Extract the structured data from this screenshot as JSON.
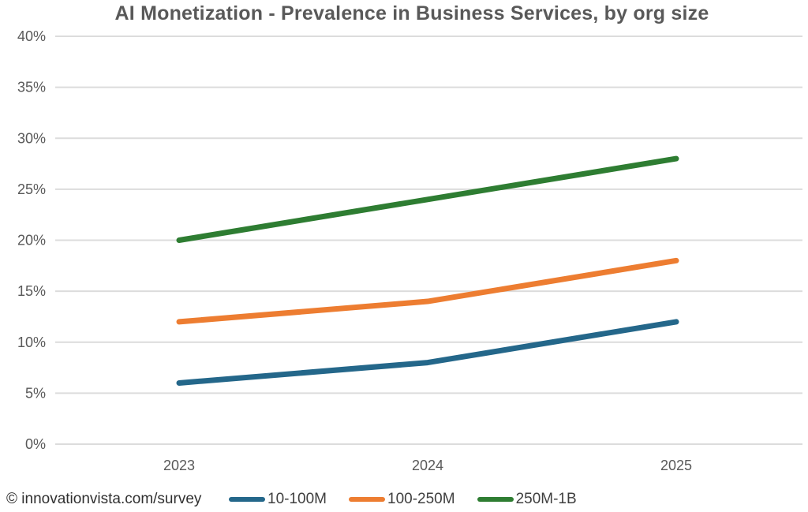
{
  "title": "AI Monetization - Prevalence in Business Services, by org size",
  "footer": {
    "source": "© innovationvista.com/survey"
  },
  "colors": {
    "background": "#ffffff",
    "title_text": "#595959",
    "axis_text": "#595959",
    "gridline": "#dcdcdc",
    "legend_text": "#3f3f3f",
    "footer_text": "#303030"
  },
  "chart_data": {
    "type": "line",
    "title": "AI Monetization - Prevalence in Business Services, by org size",
    "categories": [
      "2023",
      "2024",
      "2025"
    ],
    "series": [
      {
        "name": "10-100M",
        "color": "#24678A",
        "values": [
          6,
          8,
          12
        ]
      },
      {
        "name": "100-250M",
        "color": "#ED7D31",
        "values": [
          12,
          14,
          18
        ]
      },
      {
        "name": "250M-1B",
        "color": "#2E7D32",
        "values": [
          20,
          24,
          28
        ]
      }
    ],
    "xlabel": "",
    "ylabel": "",
    "ylim": [
      0,
      40
    ],
    "ytick_step": 5,
    "ytick_format": "percent",
    "grid": true,
    "legend_position": "bottom"
  }
}
